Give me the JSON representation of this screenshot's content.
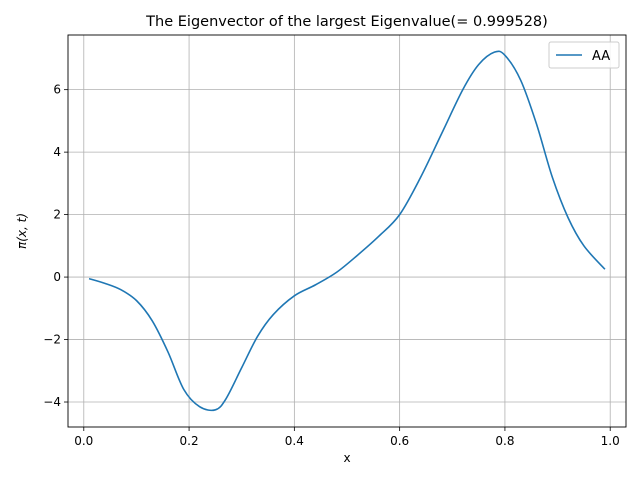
{
  "chart_data": {
    "type": "line",
    "title": "The Eigenvector of the largest Eigenvalue(= 0.999528)",
    "xlabel": "x",
    "ylabel": "π(x, t)",
    "xlim": [
      -0.03,
      1.03
    ],
    "ylim": [
      -4.8,
      7.75
    ],
    "grid": true,
    "legend_position": "top-right",
    "xticks": [
      {
        "value": 0.0,
        "label": "0.0"
      },
      {
        "value": 0.2,
        "label": "0.2"
      },
      {
        "value": 0.4,
        "label": "0.4"
      },
      {
        "value": 0.6,
        "label": "0.6"
      },
      {
        "value": 0.8,
        "label": "0.8"
      },
      {
        "value": 1.0,
        "label": "1.0"
      }
    ],
    "yticks": [
      {
        "value": -4,
        "label": "−4"
      },
      {
        "value": -2,
        "label": "−2"
      },
      {
        "value": 0,
        "label": "0"
      },
      {
        "value": 2,
        "label": "2"
      },
      {
        "value": 4,
        "label": "4"
      },
      {
        "value": 6,
        "label": "6"
      }
    ],
    "series": [
      {
        "name": "AA",
        "color": "#1f77b4",
        "x": [
          0.01,
          0.04,
          0.07,
          0.1,
          0.13,
          0.16,
          0.19,
          0.22,
          0.25,
          0.27,
          0.3,
          0.33,
          0.36,
          0.4,
          0.44,
          0.48,
          0.52,
          0.56,
          0.6,
          0.64,
          0.68,
          0.72,
          0.75,
          0.78,
          0.8,
          0.83,
          0.86,
          0.89,
          0.92,
          0.95,
          0.99
        ],
        "y": [
          -0.05,
          -0.2,
          -0.4,
          -0.75,
          -1.4,
          -2.4,
          -3.6,
          -4.15,
          -4.25,
          -3.9,
          -2.9,
          -1.9,
          -1.2,
          -0.6,
          -0.25,
          0.15,
          0.7,
          1.3,
          2.0,
          3.2,
          4.6,
          6.0,
          6.8,
          7.2,
          7.1,
          6.3,
          4.9,
          3.2,
          1.9,
          1.0,
          0.25
        ]
      }
    ]
  }
}
